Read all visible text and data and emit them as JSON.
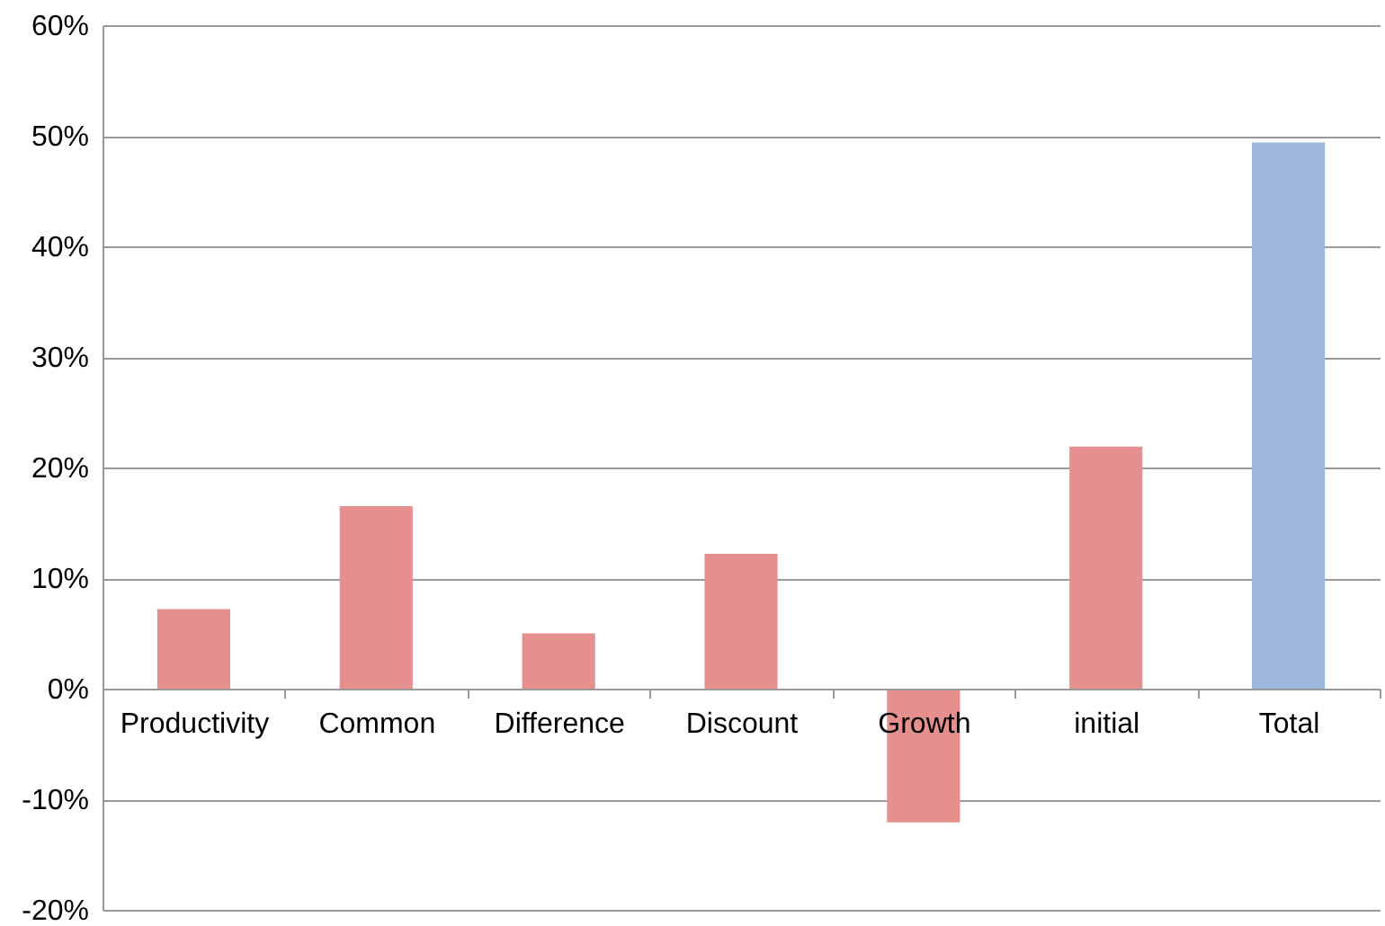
{
  "chart_data": {
    "type": "bar",
    "categories": [
      "Productivity",
      "Common",
      "Difference",
      "Discount",
      "Growth",
      "initial",
      "Total"
    ],
    "values": [
      7.2,
      16.5,
      5.0,
      12.2,
      -12.1,
      21.9,
      49.4
    ],
    "colors": [
      "#e58f8f",
      "#e58f8f",
      "#e58f8f",
      "#e58f8f",
      "#e58f8f",
      "#e58f8f",
      "#9db6dc"
    ],
    "ylim": [
      -20,
      60
    ],
    "yticks": [
      {
        "value": -20,
        "label": "-20%"
      },
      {
        "value": -10,
        "label": "-10%"
      },
      {
        "value": 0,
        "label": "0%"
      },
      {
        "value": 10,
        "label": "10%"
      },
      {
        "value": 20,
        "label": "20%"
      },
      {
        "value": 30,
        "label": "30%"
      },
      {
        "value": 40,
        "label": "40%"
      },
      {
        "value": 50,
        "label": "50%"
      },
      {
        "value": 60,
        "label": "60%"
      }
    ],
    "grid": "y"
  }
}
